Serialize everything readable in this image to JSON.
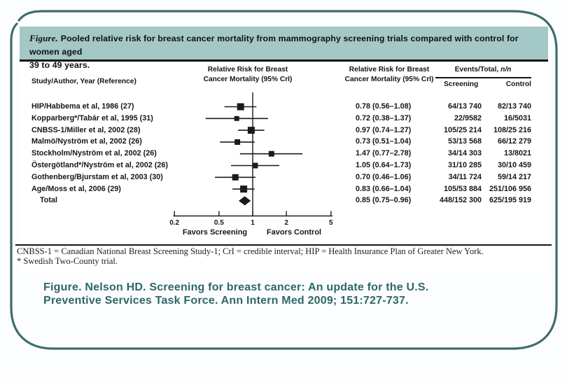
{
  "slide": {
    "caption_prefix": "Figure.",
    "caption_line1": "Pooled relative risk for breast cancer mortality from mammography screening trials compared with control for women aged",
    "caption_line2": "39 to 49 years.",
    "footnote_line1": "CNBSS-1 = Canadian National Breast Screening Study-1; CrI = credible interval; HIP = Health Insurance Plan of Greater New York.",
    "footnote_line2": "* Swedish Two-County trial.",
    "citation_line1": "Figure. Nelson HD. Screening for breast cancer: An update for the U.S.",
    "citation_line2": "Preventive Services Task Force. Ann Intern Med 2009; 151:727-737."
  },
  "table": {
    "col_study": "Study/Author, Year (Reference)",
    "rr_header_line1": "Relative Risk for Breast",
    "rr_header_line2": "Cancer Mortality (95% CrI)",
    "col_events_prefix": "Events/Total, ",
    "col_events_nn": "n/n",
    "col_screening": "Screening",
    "col_control": "Control"
  },
  "chart_data": {
    "type": "forest",
    "x_scale": "log",
    "x_range": [
      0.2,
      5
    ],
    "x_ticks": [
      0.2,
      0.5,
      1,
      2,
      5
    ],
    "x_axis_labels": [
      "0.2",
      "0.5",
      "1",
      "2",
      "5"
    ],
    "null_line": 1,
    "favors_left": "Favors Screening",
    "favors_right": "Favors Control",
    "rows": [
      {
        "study": "HIP/Habbema et al, 1986 (27)",
        "rr": 0.78,
        "lo": 0.56,
        "hi": 1.08,
        "rr_text": "0.78 (0.56–1.08)",
        "screening": "64/13 740",
        "control": "82/13 740",
        "marker": 10
      },
      {
        "study": "Kopparberg*/Tabár et al, 1995 (31)",
        "rr": 0.72,
        "lo": 0.38,
        "hi": 1.37,
        "rr_text": "0.72 (0.38–1.37)",
        "screening": "22/9582",
        "control": "16/5031",
        "marker": 7
      },
      {
        "study": "CNBSS-1/Miller et al, 2002 (28)",
        "rr": 0.97,
        "lo": 0.74,
        "hi": 1.27,
        "rr_text": "0.97 (0.74–1.27)",
        "screening": "105/25 214",
        "control": "108/25 216",
        "marker": 10
      },
      {
        "study": "Malmö/Nyström et al, 2002 (26)",
        "rr": 0.73,
        "lo": 0.51,
        "hi": 1.04,
        "rr_text": "0.73 (0.51–1.04)",
        "screening": "53/13 568",
        "control": "66/12 279",
        "marker": 8
      },
      {
        "study": "Stockholm/Nyström et al, 2002 (26)",
        "rr": 1.47,
        "lo": 0.77,
        "hi": 2.78,
        "rr_text": "1.47 (0.77–2.78)",
        "screening": "34/14 303",
        "control": "13/8021",
        "marker": 8
      },
      {
        "study": "Östergötland*/Nyström et al, 2002 (26)",
        "rr": 1.05,
        "lo": 0.64,
        "hi": 1.73,
        "rr_text": "1.05 (0.64–1.73)",
        "screening": "31/10 285",
        "control": "30/10 459",
        "marker": 8
      },
      {
        "study": "Gothenberg/Bjurstam et al, 2003 (30)",
        "rr": 0.7,
        "lo": 0.46,
        "hi": 1.06,
        "rr_text": "0.70 (0.46–1.06)",
        "screening": "34/11 724",
        "control": "59/14 217",
        "marker": 9
      },
      {
        "study": "Age/Moss et al, 2006 (29)",
        "rr": 0.83,
        "lo": 0.66,
        "hi": 1.04,
        "rr_text": "0.83 (0.66–1.04)",
        "screening": "105/53 884",
        "control": "251/106 956",
        "marker": 10
      }
    ],
    "total": {
      "study": "Total",
      "rr": 0.85,
      "lo": 0.75,
      "hi": 0.96,
      "rr_text": "0.85 (0.75–0.96)",
      "screening": "448/152 300",
      "control": "625/195 919"
    }
  },
  "colors": {
    "frame_teal": "#3e6c6c",
    "caption_bg": "#a3c8c6",
    "citation_ink": "#2f6767",
    "plot_ink": "#1b1b1b"
  }
}
